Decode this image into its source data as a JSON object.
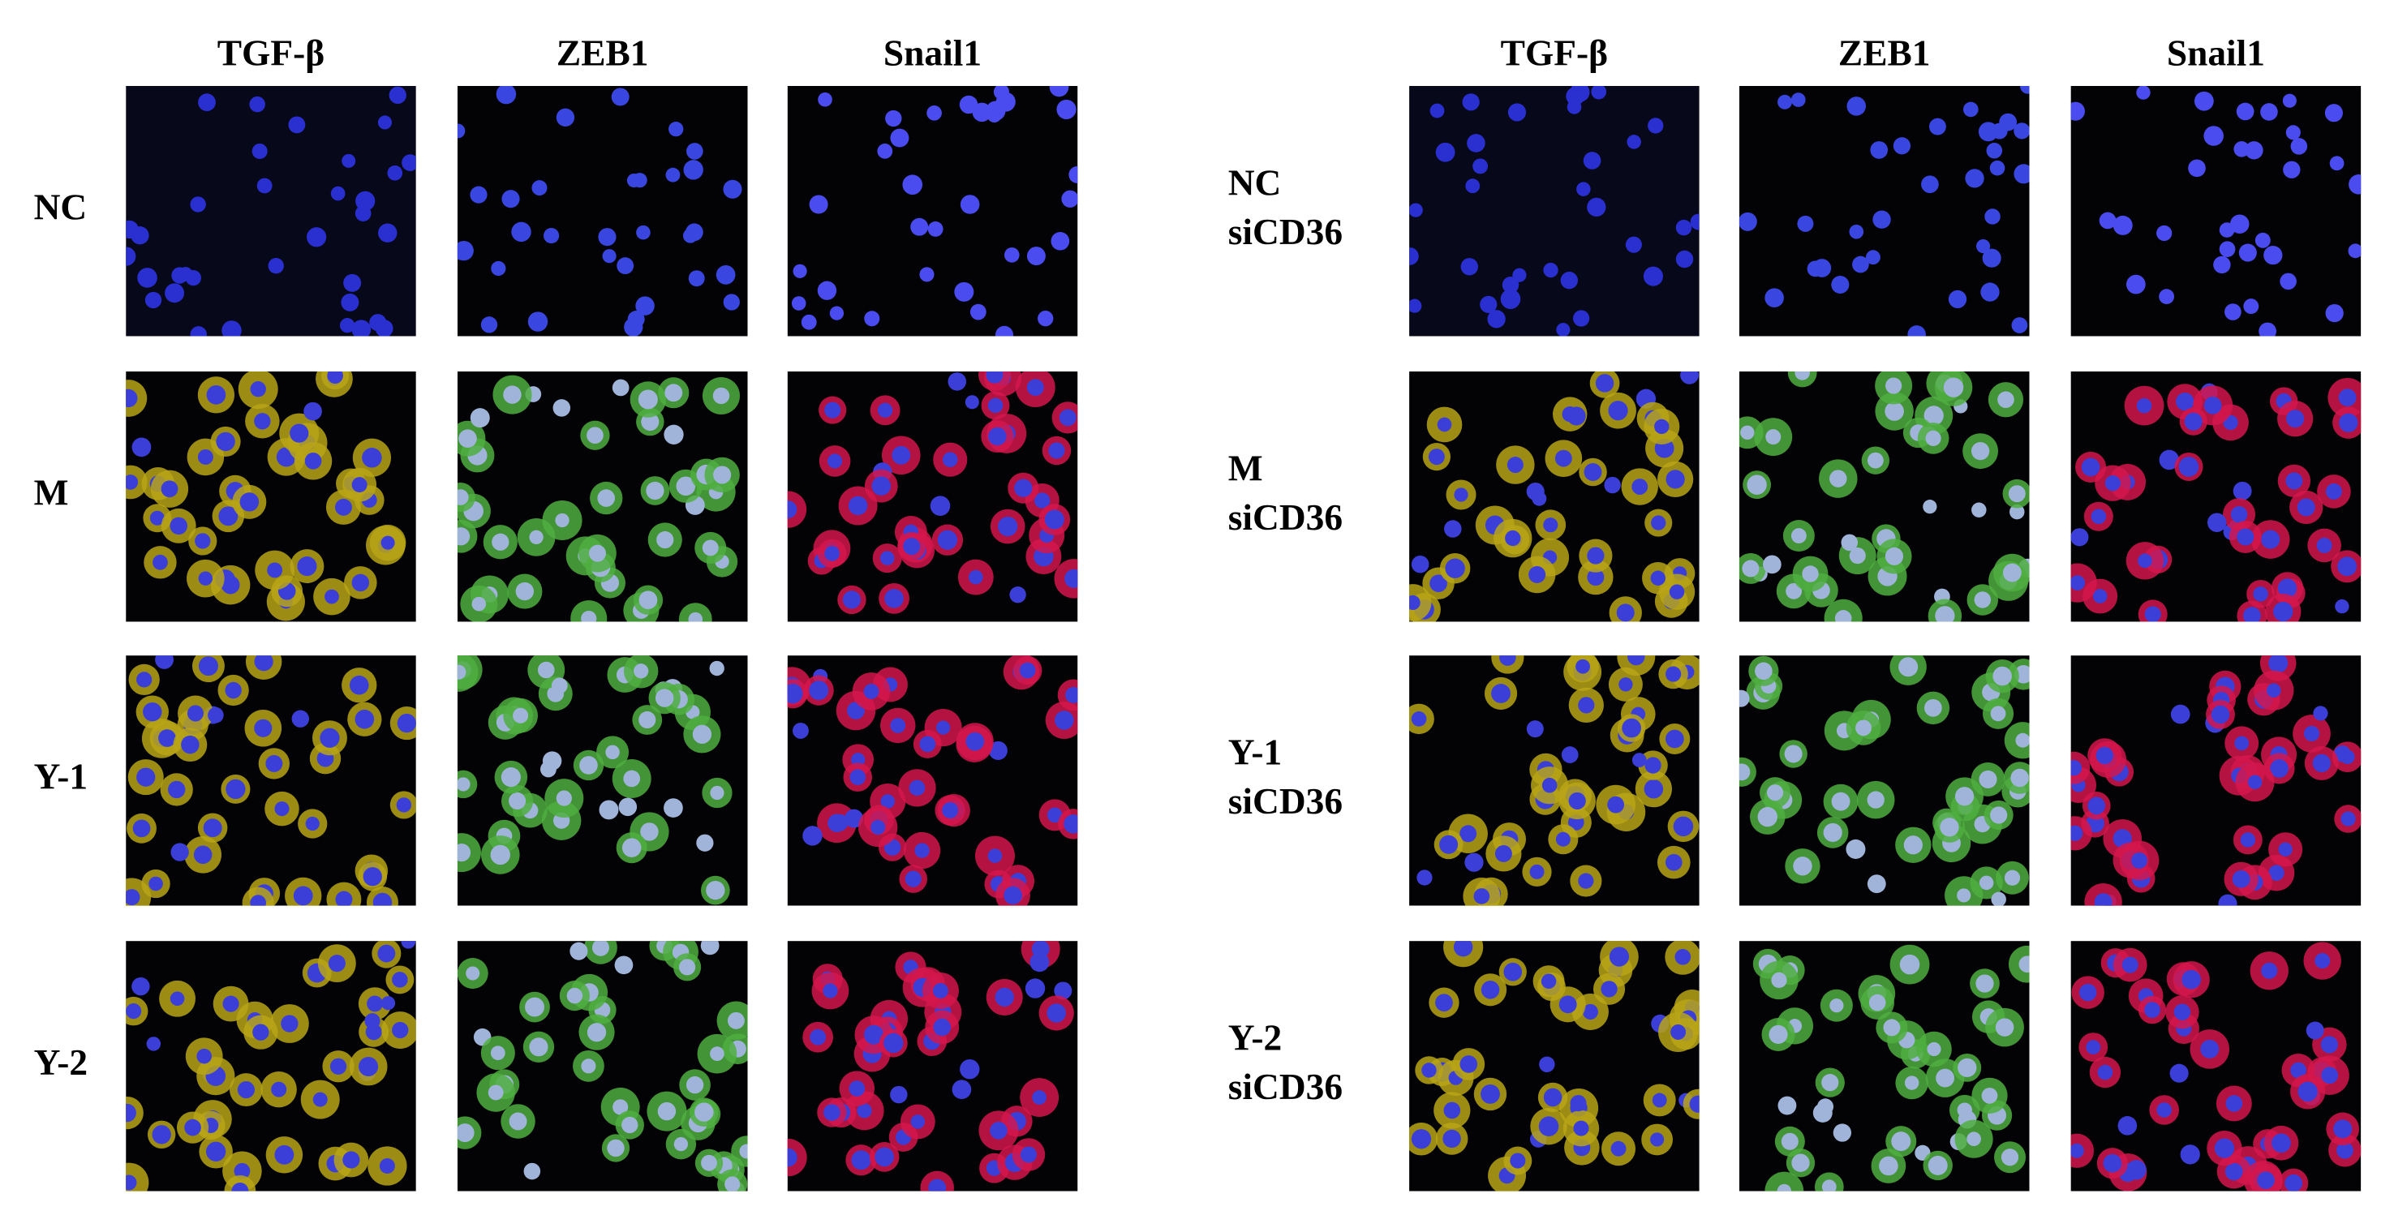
{
  "left": {
    "columns": [
      "TGF-β",
      "ZEB1",
      "Snail1"
    ],
    "rows": [
      [
        "NC"
      ],
      [
        "M"
      ],
      [
        "Y-1"
      ],
      [
        "Y-2"
      ]
    ]
  },
  "right": {
    "columns": [
      "TGF-β",
      "ZEB1",
      "Snail1"
    ],
    "rows": [
      [
        "NC",
        "siCD36"
      ],
      [
        "M",
        "siCD36"
      ],
      [
        "Y-1",
        "siCD36"
      ],
      [
        "Y-2",
        "siCD36"
      ]
    ]
  }
}
